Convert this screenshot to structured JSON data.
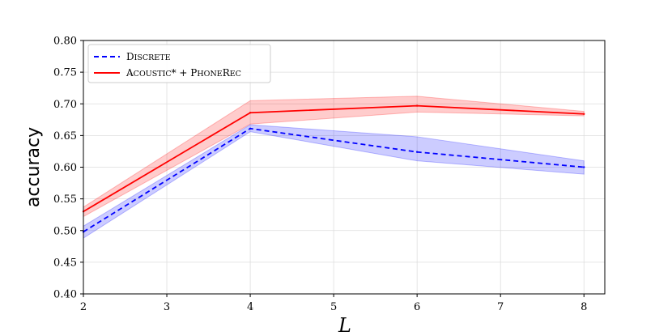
{
  "chart_data": {
    "type": "line",
    "xlabel": "L",
    "ylabel": "accuracy",
    "xlim": [
      2,
      8.25
    ],
    "ylim": [
      0.4,
      0.8
    ],
    "x_ticks": [
      "2",
      "3",
      "4",
      "5",
      "6",
      "7",
      "8"
    ],
    "y_ticks": [
      "0.40",
      "0.45",
      "0.50",
      "0.55",
      "0.60",
      "0.65",
      "0.70",
      "0.75",
      "0.80"
    ],
    "grid": true,
    "legend_position": "top-left",
    "x": [
      2,
      4,
      6,
      8
    ],
    "series": [
      {
        "name": "Discrete",
        "name_display": {
          "cap1": "D",
          "rest1": "ISCRETE",
          "cap2": "",
          "rest2": ""
        },
        "color": "#0000ff",
        "line_style": "dashed",
        "values": [
          0.498,
          0.661,
          0.624,
          0.6
        ],
        "lower": [
          0.488,
          0.656,
          0.61,
          0.589
        ],
        "upper": [
          0.507,
          0.667,
          0.648,
          0.61
        ]
      },
      {
        "name": "Acoustic* + PhoneRec",
        "name_display": {
          "cap1": "A",
          "rest1": "COUSTIC",
          "mid": "* + ",
          "cap2": "P",
          "rest2": "HONE",
          "cap3": "R",
          "rest3": "EC"
        },
        "color": "#ff0000",
        "line_style": "solid",
        "values": [
          0.53,
          0.686,
          0.697,
          0.684
        ],
        "lower": [
          0.522,
          0.668,
          0.687,
          0.681
        ],
        "upper": [
          0.537,
          0.705,
          0.712,
          0.688
        ]
      }
    ]
  }
}
